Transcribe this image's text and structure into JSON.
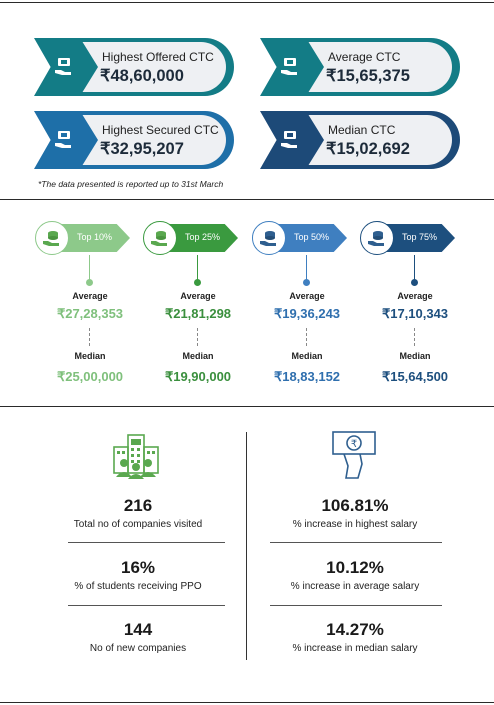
{
  "ctc_cards": [
    {
      "label": "Highest Offered CTC",
      "value": "₹48,60,000",
      "color": "#137c86",
      "light": "#2aa3a8"
    },
    {
      "label": "Average CTC",
      "value": "₹15,65,375",
      "color": "#137c86",
      "light": "#2aa3a8"
    },
    {
      "label": "Highest Secured CTC",
      "value": "₹32,95,207",
      "color": "#1e6fa8",
      "light": "#3d8dc6"
    },
    {
      "label": "Median CTC",
      "value": "₹15,02,692",
      "color": "#1d4a78",
      "light": "#2b5f93"
    }
  ],
  "note": "*The data presented is reported up to 31st March",
  "percentiles": [
    {
      "tag": "Top 10%",
      "average_label": "Average",
      "average": "₹27,28,353",
      "median_label": "Median",
      "median": "₹25,00,000",
      "color": "#8dc98a",
      "text_color": "#7fc07c"
    },
    {
      "tag": "Top 25%",
      "average_label": "Average",
      "average": "₹21,81,298",
      "median_label": "Median",
      "median": "₹19,90,000",
      "color": "#3a9a3f",
      "text_color": "#3a8f3d"
    },
    {
      "tag": "Top 50%",
      "average_label": "Average",
      "average": "₹19,36,243",
      "median_label": "Median",
      "median": "₹18,83,152",
      "color": "#3f7fc0",
      "text_color": "#2f6fae"
    },
    {
      "tag": "Top 75%",
      "average_label": "Average",
      "average": "₹17,10,343",
      "median_label": "Median",
      "median": "₹15,64,500",
      "color": "#1d4f7e",
      "text_color": "#1d4f7e"
    }
  ],
  "stats_left": [
    {
      "value": "216",
      "caption": "Total no of companies visited"
    },
    {
      "value": "16%",
      "caption": "% of students receiving PPO"
    },
    {
      "value": "144",
      "caption": "No of new companies"
    }
  ],
  "stats_right": [
    {
      "value": "106.81%",
      "caption": "% increase in highest salary"
    },
    {
      "value": "10.12%",
      "caption": "% increase in average salary"
    },
    {
      "value": "14.27%",
      "caption": "% increase in median salary"
    }
  ],
  "icons": {
    "ctc": "money-hand-icon",
    "percentile": "coins-hand-icon",
    "companies": "office-building-icon",
    "salary": "rupee-hand-icon"
  },
  "colors": {
    "green_icon": "#5aa84f",
    "blue_icon": "#2f5f8f"
  }
}
